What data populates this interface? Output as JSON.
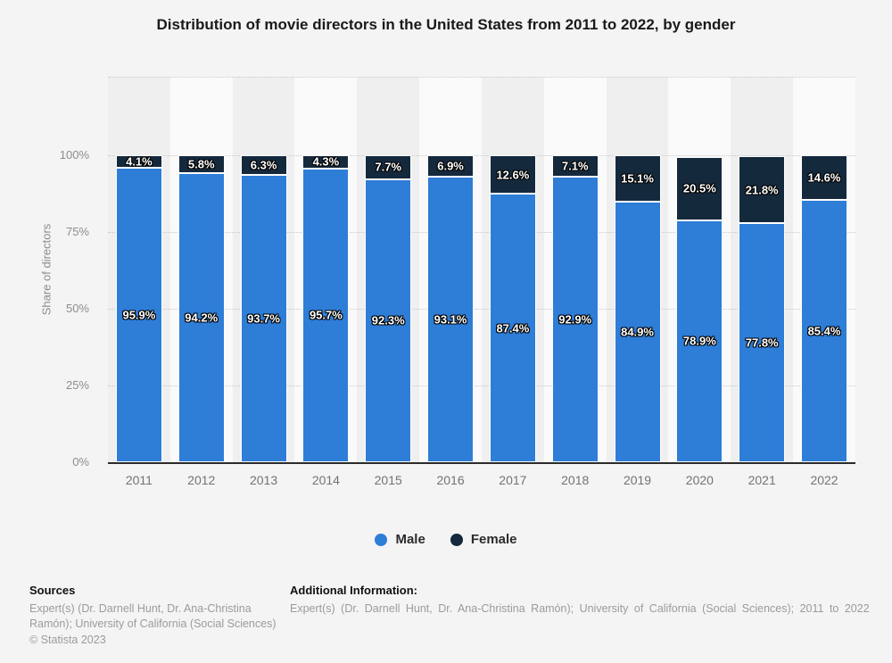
{
  "title": "Distribution of movie directors in the United States from 2011 to 2022, by gender",
  "chart_data": {
    "type": "bar",
    "stacked": true,
    "title": "Distribution of movie directors in the United States from 2011 to 2022, by gender",
    "categories": [
      "2011",
      "2012",
      "2013",
      "2014",
      "2015",
      "2016",
      "2017",
      "2018",
      "2019",
      "2020",
      "2021",
      "2022"
    ],
    "series": [
      {
        "name": "Male",
        "color": "#2e7dd7",
        "values": [
          95.9,
          94.2,
          93.7,
          95.7,
          92.3,
          93.1,
          87.4,
          92.9,
          84.9,
          78.9,
          77.8,
          85.4
        ]
      },
      {
        "name": "Female",
        "color": "#15293d",
        "values": [
          4.1,
          5.8,
          6.3,
          4.3,
          7.7,
          6.9,
          12.6,
          7.1,
          15.1,
          20.5,
          21.8,
          14.6
        ]
      }
    ],
    "xlabel": "",
    "ylabel": "Share of directors",
    "yticks_percent": [
      0,
      25,
      50,
      75,
      100
    ],
    "ytick_labels": [
      "0%",
      "25%",
      "50%",
      "75%",
      "100%"
    ],
    "ylim": [
      0,
      125
    ],
    "value_suffix": "%",
    "grid": "dotted-horizontal",
    "legend_position": "bottom",
    "band_colors": [
      "#efefef",
      "#fafafa"
    ],
    "axis_line_color": "#2b2b2b"
  },
  "footer": {
    "sources_label": "Sources",
    "sources_text": "Expert(s) (Dr. Darnell Hunt, Dr. Ana-Christina Ramón); University of California (Social Sciences)",
    "copyright": "© Statista 2023",
    "additional_label": "Additional Information:",
    "additional_text": "Expert(s) (Dr. Darnell Hunt, Dr. Ana-Christina Ramón); University of California (Social Sciences); 2011 to 2022"
  }
}
